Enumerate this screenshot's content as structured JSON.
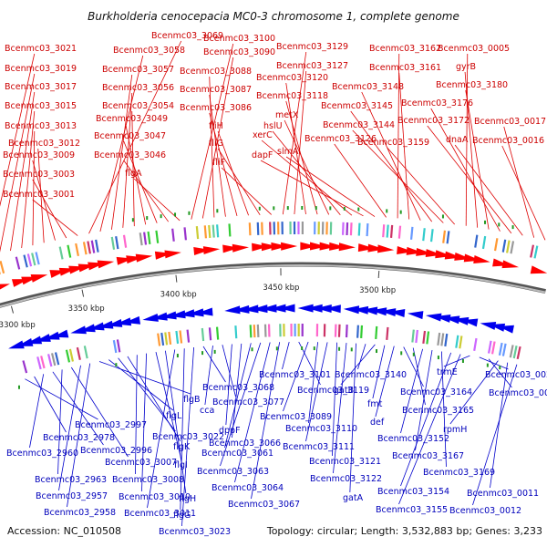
{
  "title": "Burkholderia cenocepacia MC0-3 chromosome 1, complete genome",
  "footer": {
    "accession": "Accession: NC_010508",
    "summary": "Topology: circular; Length: 3,532,883 bp; Genes: 3,233"
  },
  "scale_ticks": [
    {
      "label": "3300 kbp",
      "pos": 3300
    },
    {
      "label": "3350 kbp",
      "pos": 3350
    },
    {
      "label": "3400 kbp",
      "pos": 3400
    },
    {
      "label": "3450 kbp",
      "pos": 3450
    },
    {
      "label": "3500 kbp",
      "pos": 3500
    }
  ],
  "colors": {
    "forward": "#ff0000",
    "reverse": "#0000ee",
    "backbone": "#888888",
    "top_label": "#cc0000",
    "bottom_label": "#0000bb"
  },
  "top_labels": [
    "Bcenmc03_3021",
    "Bcenmc03_3019",
    "Bcenmc03_3017",
    "Bcenmc03_3015",
    "Bcenmc03_3013",
    "Bcenmc03_3012",
    "Bcenmc03_3009",
    "Bcenmc03_3003",
    "Bcenmc03_3001",
    "Bcenmc03_3069",
    "Bcenmc03_3058",
    "Bcenmc03_3057",
    "Bcenmc03_3056",
    "Bcenmc03_3054",
    "Bcenmc03_3049",
    "Bcenmc03_3047",
    "Bcenmc03_3046",
    "flgA",
    "Bcenmc03_3100",
    "Bcenmc03_3090",
    "Bcenmc03_3088",
    "Bcenmc03_3087",
    "Bcenmc03_3086",
    "fliH",
    "fliG",
    "fliF",
    "Bcenmc03_3129",
    "Bcenmc03_3127",
    "Bcenmc03_3120",
    "Bcenmc03_3118",
    "metX",
    "hslU",
    "xerC",
    "dapF",
    "slmA",
    "Bcenmc03_3126",
    "Bcenmc03_3162",
    "Bcenmc03_3161",
    "Bcenmc03_3148",
    "Bcenmc03_3145",
    "Bcenmc03_3144",
    "Bcenmc03_3159",
    "Bcenmc03_0005",
    "gyrB",
    "Bcenmc03_3180",
    "Bcenmc03_3176",
    "Bcenmc03_3172",
    "dnaA",
    "Bcenmc03_0017",
    "Bcenmc03_0016"
  ],
  "bottom_labels": [
    "Bcenmc03_2997",
    "Bcenmc03_2978",
    "Bcenmc03_2960",
    "Bcenmc03_2996",
    "Bcenmc03_2963",
    "Bcenmc03_3007",
    "Bcenmc03_2957",
    "Bcenmc03_2958",
    "flgB",
    "flgL",
    "Bcenmc03_3022",
    "flgK",
    "Bcenmc03_3008",
    "Bcenmc03_3010",
    "flgI",
    "flgH",
    "Bcenmc03_3011",
    "flgG",
    "Bcenmc03_3023",
    "Bcenmc03_3068",
    "cca",
    "Bcenmc03_3077",
    "dppF",
    "Bcenmc03_3066",
    "Bcenmc03_3061",
    "Bcenmc03_3063",
    "Bcenmc03_3064",
    "Bcenmc03_3067",
    "Bcenmc03_3101",
    "Bcenmc03_3119",
    "Bcenmc03_3089",
    "Bcenmc03_3110",
    "Bcenmc03_3111",
    "Bcenmc03_3121",
    "Bcenmc03_3122",
    "gatA",
    "Bcenmc03_3140",
    "gatB",
    "fmt",
    "def",
    "Bcenmc03_3164",
    "Bcenmc03_3165",
    "Bcenmc03_3152",
    "Bcenmc03_3167",
    "Bcenmc03_3169",
    "Bcenmc03_3154",
    "Bcenmc03_3155",
    "trmE",
    "Bcenmc03_0022",
    "Bcenmc03_0023",
    "rpmH",
    "Bcenmc03_0011",
    "Bcenmc03_0012"
  ]
}
